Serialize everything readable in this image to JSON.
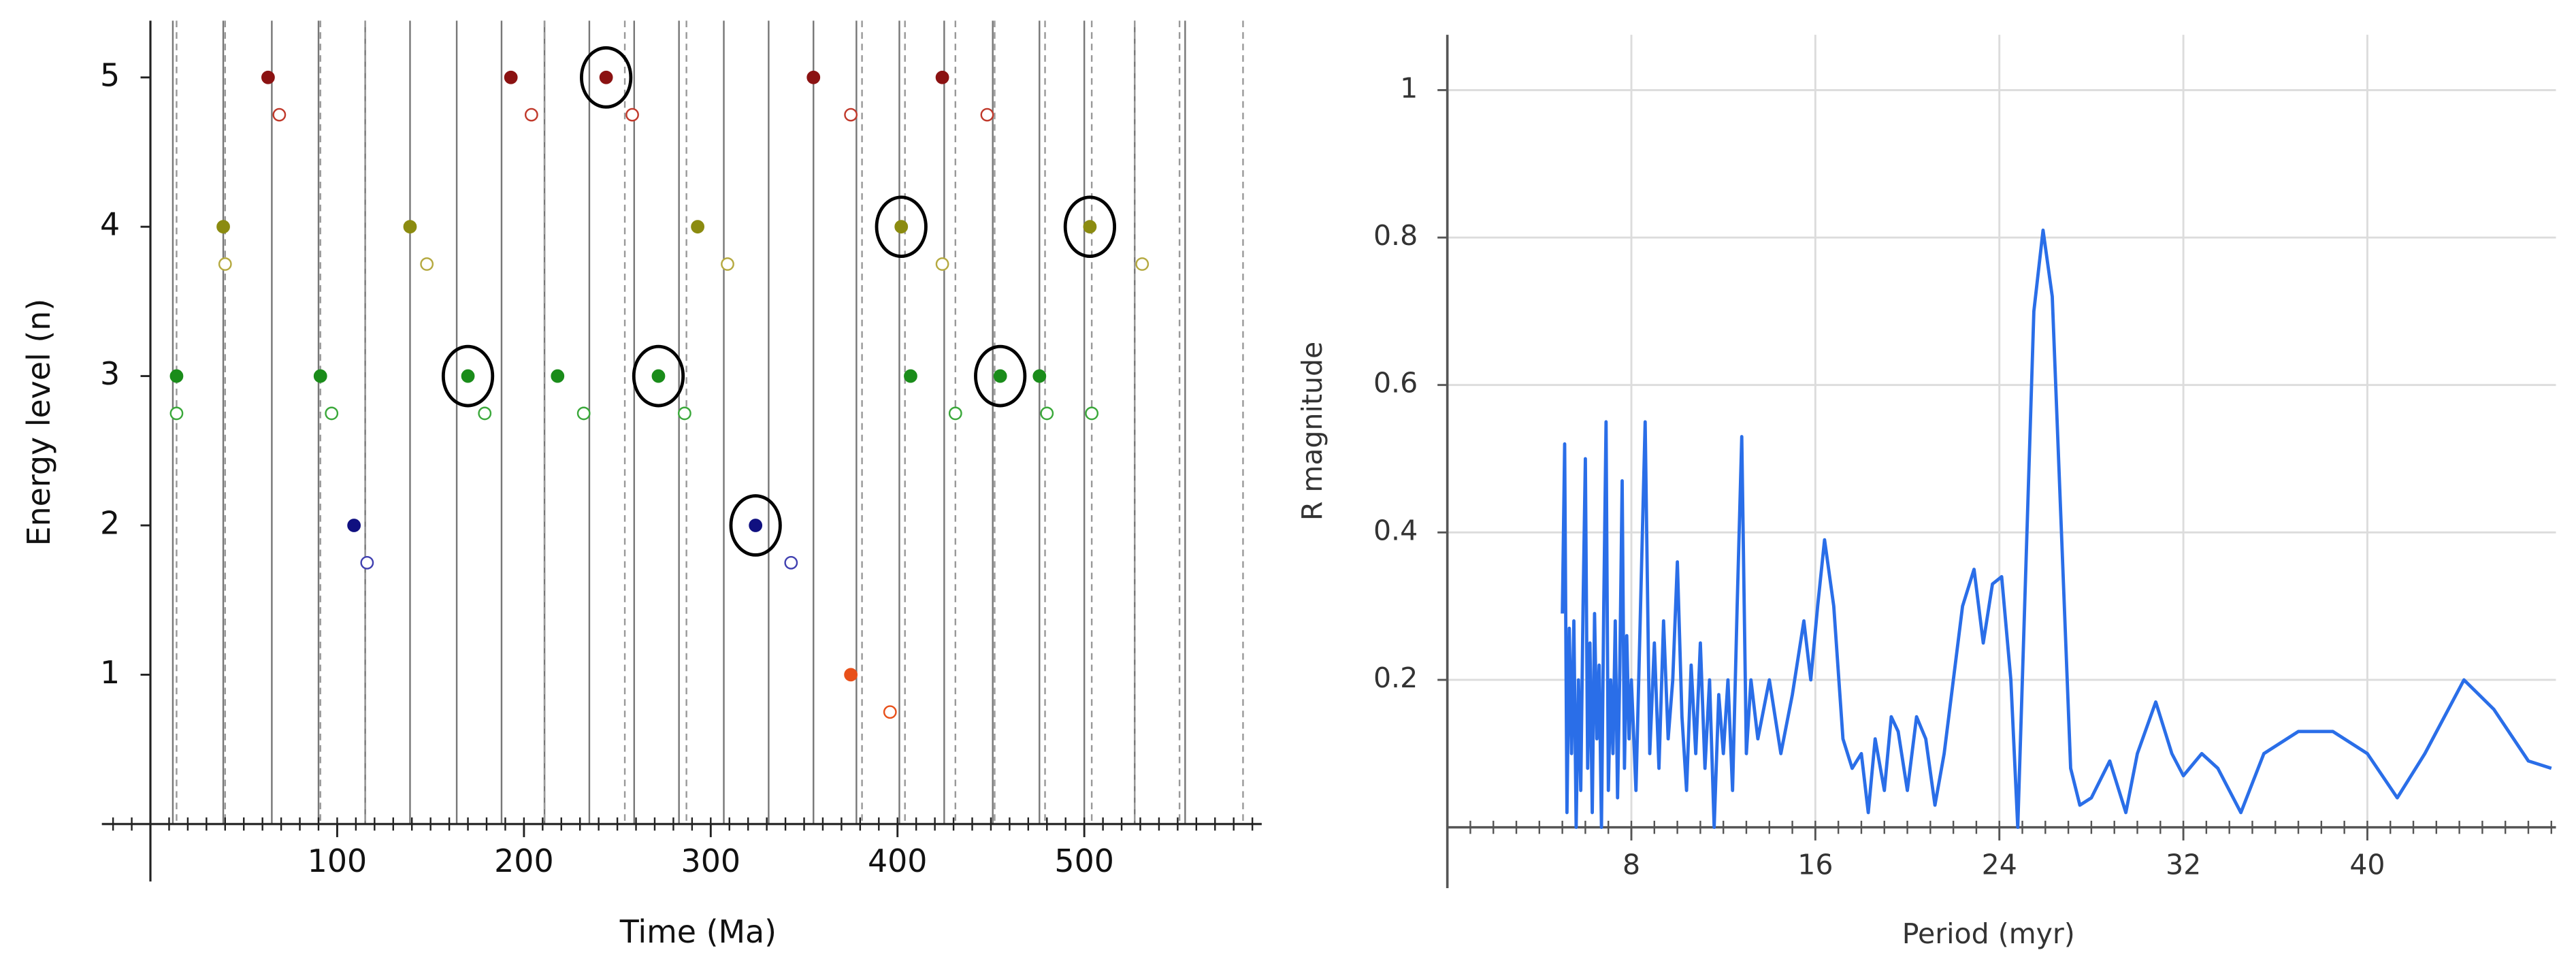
{
  "chart_data": [
    {
      "type": "scatter",
      "xlabel": "Time (Ma)",
      "ylabel": "Energy level (n)",
      "xlim": [
        -26,
        595
      ],
      "ylim": [
        0,
        5.38
      ],
      "xticks": [
        100,
        200,
        300,
        400,
        500
      ],
      "yticks": [
        1,
        2,
        3,
        4,
        5
      ],
      "xminorticks": [
        -20,
        -10,
        0,
        10,
        20,
        30,
        40,
        50,
        60,
        70,
        80,
        90,
        100,
        110,
        120,
        130,
        140,
        150,
        160,
        170,
        180,
        190,
        200,
        210,
        220,
        230,
        240,
        250,
        260,
        270,
        280,
        290,
        300,
        310,
        320,
        330,
        340,
        350,
        360,
        370,
        380,
        390,
        400,
        410,
        420,
        430,
        440,
        450,
        460,
        470,
        480,
        490,
        500,
        510,
        520,
        530,
        540,
        550,
        560,
        570,
        580,
        590
      ],
      "vlines": [
        {
          "style": "solid",
          "color": "#777777",
          "x": [
            12,
            39,
            65,
            90,
            115,
            139,
            164,
            188,
            211,
            235,
            259,
            283,
            307,
            331,
            355,
            378,
            401,
            425,
            451,
            476,
            500,
            527,
            554
          ]
        },
        {
          "style": "dashed",
          "color": "#999999",
          "x": [
            14,
            40,
            91,
            115,
            211,
            254,
            287,
            381,
            404,
            431,
            452,
            479,
            504,
            527,
            551,
            585
          ]
        }
      ],
      "series": [
        {
          "marker": "filled",
          "color": "#8b1212",
          "x": [
            63,
            193,
            244,
            355,
            424
          ],
          "values": [
            5,
            5,
            5,
            5,
            5
          ]
        },
        {
          "marker": "open",
          "color": "#c0392b",
          "x": [
            69,
            204,
            258,
            375,
            448
          ],
          "values": [
            4.75,
            4.75,
            4.75,
            4.75,
            4.75
          ]
        },
        {
          "marker": "filled",
          "color": "#8b8b10",
          "x": [
            39,
            139,
            293,
            402,
            503
          ],
          "values": [
            4,
            4,
            4,
            4,
            4
          ]
        },
        {
          "marker": "open",
          "color": "#b5a940",
          "x": [
            40,
            148,
            309,
            424,
            531
          ],
          "values": [
            3.75,
            3.75,
            3.75,
            3.75,
            3.75
          ]
        },
        {
          "marker": "filled",
          "color": "#1a8c1a",
          "x": [
            14,
            91,
            170,
            218,
            272,
            407,
            455,
            476
          ],
          "values": [
            3,
            3,
            3,
            3,
            3,
            3,
            3,
            3
          ]
        },
        {
          "marker": "open",
          "color": "#3aa83a",
          "x": [
            14,
            97,
            179,
            232,
            286,
            431,
            480,
            504
          ],
          "values": [
            2.75,
            2.75,
            2.75,
            2.75,
            2.75,
            2.75,
            2.75,
            2.75
          ]
        },
        {
          "marker": "filled",
          "color": "#101080",
          "x": [
            109,
            324
          ],
          "values": [
            2,
            2
          ]
        },
        {
          "marker": "open",
          "color": "#4040b0",
          "x": [
            116,
            343
          ],
          "values": [
            1.75,
            1.75
          ]
        },
        {
          "marker": "filled",
          "color": "#e8501a",
          "x": [
            375
          ],
          "values": [
            1
          ]
        },
        {
          "marker": "open",
          "color": "#e8501a",
          "x": [
            396
          ],
          "values": [
            0.75
          ]
        },
        {
          "marker": "ring",
          "color": "#000000",
          "x": [
            244,
            402,
            503,
            170,
            272,
            455,
            324
          ],
          "values": [
            5,
            4,
            4,
            3,
            3,
            3,
            2
          ]
        }
      ]
    },
    {
      "type": "line",
      "xlabel": "Period (myr)",
      "ylabel": "R magnitude",
      "xlim": [
        0,
        48.2
      ],
      "ylim": [
        0,
        1.075
      ],
      "xticks": [
        8,
        16,
        24,
        32,
        40
      ],
      "yticks": [
        0.2,
        0.4,
        0.6,
        0.8,
        1
      ],
      "xminorticks": [
        1,
        2,
        3,
        4,
        5,
        6,
        7,
        8,
        9,
        10,
        11,
        12,
        13,
        14,
        15,
        16,
        17,
        18,
        19,
        20,
        21,
        22,
        23,
        24,
        25,
        26,
        27,
        28,
        29,
        30,
        31,
        32,
        33,
        34,
        35,
        36,
        37,
        38,
        39,
        40,
        41,
        42,
        43,
        44,
        45,
        46,
        47,
        48
      ],
      "grid": true,
      "color": "#2a6ee8",
      "x": [
        5.0,
        5.1,
        5.2,
        5.3,
        5.4,
        5.5,
        5.6,
        5.7,
        5.8,
        5.9,
        6.0,
        6.1,
        6.2,
        6.3,
        6.4,
        6.5,
        6.6,
        6.7,
        6.8,
        6.9,
        7.0,
        7.1,
        7.2,
        7.3,
        7.4,
        7.5,
        7.6,
        7.7,
        7.8,
        7.9,
        8.0,
        8.2,
        8.4,
        8.6,
        8.8,
        9.0,
        9.2,
        9.4,
        9.6,
        9.8,
        10.0,
        10.2,
        10.4,
        10.6,
        10.8,
        11.0,
        11.2,
        11.4,
        11.6,
        11.8,
        12.0,
        12.2,
        12.4,
        12.6,
        12.8,
        13.0,
        13.2,
        13.5,
        14.0,
        14.5,
        15.0,
        15.5,
        15.8,
        16.1,
        16.4,
        16.8,
        17.2,
        17.6,
        18.0,
        18.3,
        18.6,
        19.0,
        19.3,
        19.6,
        20.0,
        20.4,
        20.8,
        21.2,
        21.6,
        22.0,
        22.4,
        22.9,
        23.3,
        23.7,
        24.1,
        24.5,
        24.8,
        25.1,
        25.5,
        25.9,
        26.3,
        26.7,
        27.1,
        27.5,
        28.0,
        28.8,
        29.5,
        30.0,
        30.8,
        31.5,
        32.0,
        32.8,
        33.5,
        34.5,
        35.5,
        37.0,
        38.5,
        40.0,
        41.3,
        42.5,
        44.2,
        45.5,
        47.0,
        48.0
      ],
      "values": [
        0.29,
        0.52,
        0.02,
        0.27,
        0.1,
        0.28,
        0.0,
        0.2,
        0.05,
        0.3,
        0.5,
        0.08,
        0.25,
        0.02,
        0.29,
        0.12,
        0.22,
        0.0,
        0.3,
        0.55,
        0.05,
        0.2,
        0.1,
        0.28,
        0.04,
        0.22,
        0.47,
        0.08,
        0.26,
        0.12,
        0.2,
        0.05,
        0.3,
        0.55,
        0.1,
        0.25,
        0.08,
        0.28,
        0.12,
        0.2,
        0.36,
        0.15,
        0.05,
        0.22,
        0.1,
        0.25,
        0.08,
        0.2,
        0.0,
        0.18,
        0.1,
        0.2,
        0.05,
        0.3,
        0.53,
        0.1,
        0.2,
        0.12,
        0.2,
        0.1,
        0.18,
        0.28,
        0.2,
        0.3,
        0.39,
        0.3,
        0.12,
        0.08,
        0.1,
        0.02,
        0.12,
        0.05,
        0.15,
        0.13,
        0.05,
        0.15,
        0.12,
        0.03,
        0.1,
        0.2,
        0.3,
        0.35,
        0.25,
        0.33,
        0.34,
        0.2,
        0.0,
        0.3,
        0.7,
        0.81,
        0.72,
        0.4,
        0.08,
        0.03,
        0.04,
        0.09,
        0.02,
        0.1,
        0.17,
        0.1,
        0.07,
        0.1,
        0.08,
        0.02,
        0.1,
        0.13,
        0.13,
        0.1,
        0.04,
        0.1,
        0.2,
        0.16,
        0.09,
        0.08
      ]
    }
  ]
}
